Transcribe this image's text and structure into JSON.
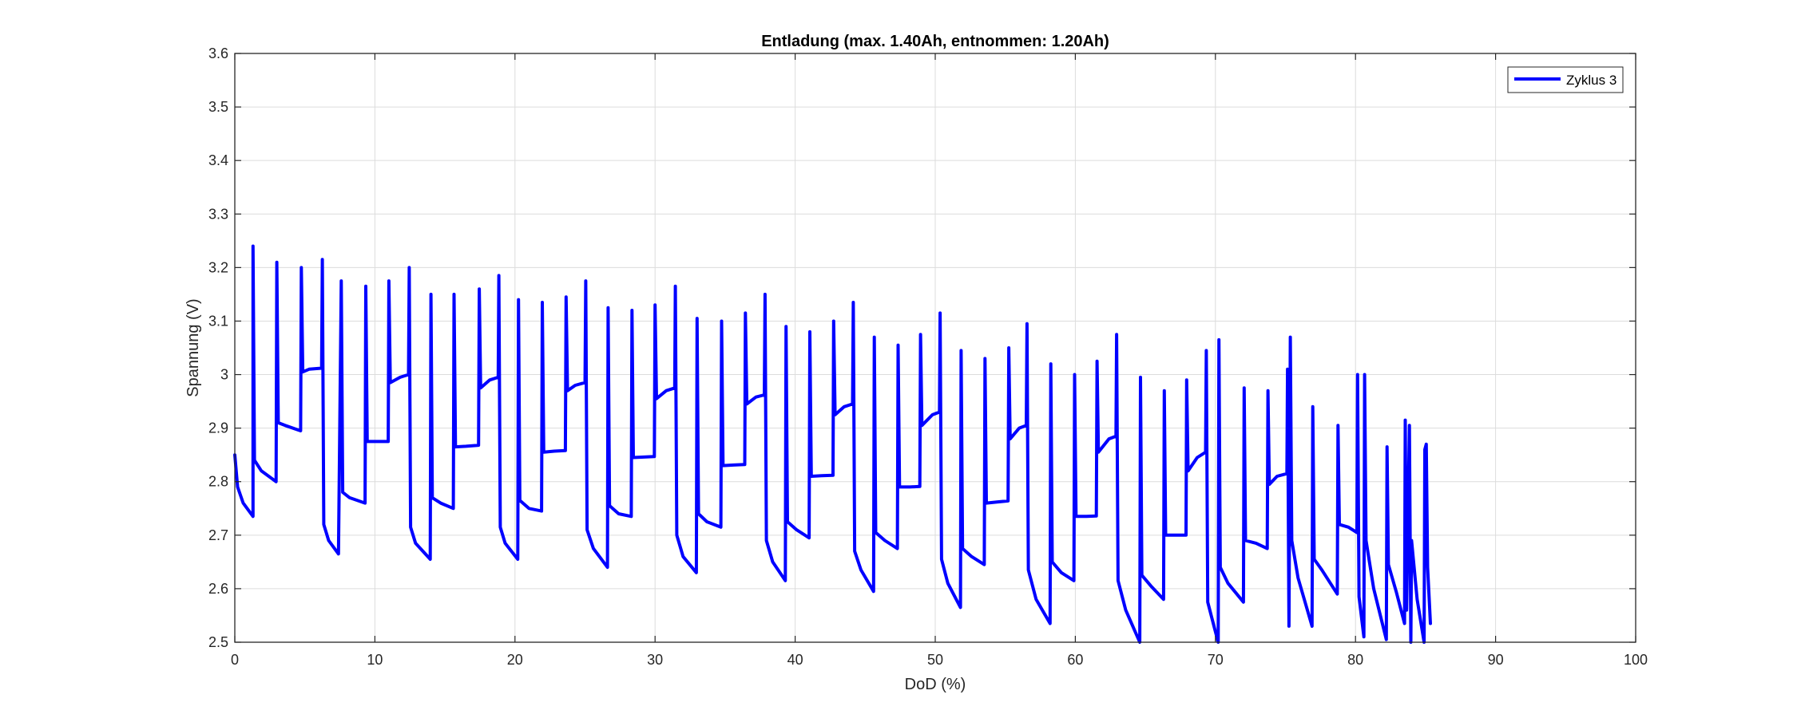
{
  "chart_data": {
    "type": "line",
    "title": "Entladung (max. 1.40Ah, entnommen: 1.20Ah)",
    "xlabel": "DoD (%)",
    "ylabel": "Spannung (V)",
    "xlim": [
      0,
      100
    ],
    "ylim": [
      2.5,
      3.6
    ],
    "xticks": [
      0,
      10,
      20,
      30,
      40,
      50,
      60,
      70,
      80,
      90,
      100
    ],
    "xtick_labels": [
      "0",
      "10",
      "20",
      "30",
      "40",
      "50",
      "60",
      "70",
      "80",
      "90",
      "100"
    ],
    "yticks": [
      2.5,
      2.6,
      2.7,
      2.8,
      2.9,
      3.0,
      3.1,
      3.2,
      3.3,
      3.4,
      3.5,
      3.6
    ],
    "ytick_labels": [
      "2.5",
      "2.6",
      "2.7",
      "2.8",
      "2.9",
      "3",
      "3.1",
      "3.2",
      "3.3",
      "3.4",
      "3.5",
      "3.6"
    ],
    "grid": true,
    "legend_position": "top-right",
    "series": [
      {
        "name": "Zyklus 3",
        "color": "#0000ff",
        "points": [
          [
            0.0,
            2.85
          ],
          [
            0.2,
            2.79
          ],
          [
            0.6,
            2.76
          ],
          [
            1.3,
            2.735
          ],
          [
            1.3,
            3.24
          ],
          [
            1.4,
            2.84
          ],
          [
            1.9,
            2.82
          ],
          [
            2.95,
            2.8
          ],
          [
            3.0,
            3.21
          ],
          [
            3.1,
            2.91
          ],
          [
            3.6,
            2.905
          ],
          [
            4.7,
            2.895
          ],
          [
            4.75,
            3.2
          ],
          [
            4.85,
            3.005
          ],
          [
            5.3,
            3.01
          ],
          [
            6.2,
            3.012
          ],
          [
            6.25,
            3.215
          ],
          [
            6.35,
            2.72
          ],
          [
            6.7,
            2.69
          ],
          [
            7.4,
            2.665
          ],
          [
            7.6,
            3.175
          ],
          [
            7.7,
            2.78
          ],
          [
            8.2,
            2.77
          ],
          [
            9.3,
            2.76
          ],
          [
            9.35,
            3.165
          ],
          [
            9.45,
            2.875
          ],
          [
            10.0,
            2.875
          ],
          [
            10.95,
            2.875
          ],
          [
            11.0,
            3.175
          ],
          [
            11.1,
            2.985
          ],
          [
            11.8,
            2.995
          ],
          [
            12.4,
            3.0
          ],
          [
            12.45,
            3.2
          ],
          [
            12.55,
            2.715
          ],
          [
            12.9,
            2.685
          ],
          [
            13.95,
            2.655
          ],
          [
            14.0,
            3.15
          ],
          [
            14.1,
            2.77
          ],
          [
            14.7,
            2.76
          ],
          [
            15.6,
            2.75
          ],
          [
            15.65,
            3.15
          ],
          [
            15.75,
            2.865
          ],
          [
            16.5,
            2.866
          ],
          [
            17.4,
            2.868
          ],
          [
            17.45,
            3.16
          ],
          [
            17.55,
            2.975
          ],
          [
            18.2,
            2.99
          ],
          [
            18.8,
            2.995
          ],
          [
            18.85,
            3.185
          ],
          [
            18.95,
            2.715
          ],
          [
            19.3,
            2.685
          ],
          [
            20.2,
            2.655
          ],
          [
            20.25,
            3.14
          ],
          [
            20.35,
            2.765
          ],
          [
            21.0,
            2.75
          ],
          [
            21.9,
            2.745
          ],
          [
            21.95,
            3.135
          ],
          [
            22.05,
            2.855
          ],
          [
            22.8,
            2.857
          ],
          [
            23.6,
            2.858
          ],
          [
            23.65,
            3.145
          ],
          [
            23.75,
            2.97
          ],
          [
            24.3,
            2.98
          ],
          [
            25.0,
            2.985
          ],
          [
            25.05,
            3.175
          ],
          [
            25.15,
            2.71
          ],
          [
            25.6,
            2.675
          ],
          [
            26.6,
            2.64
          ],
          [
            26.65,
            3.125
          ],
          [
            26.75,
            2.755
          ],
          [
            27.4,
            2.74
          ],
          [
            28.3,
            2.735
          ],
          [
            28.35,
            3.12
          ],
          [
            28.45,
            2.845
          ],
          [
            29.2,
            2.846
          ],
          [
            29.95,
            2.847
          ],
          [
            30.0,
            3.13
          ],
          [
            30.1,
            2.955
          ],
          [
            30.8,
            2.97
          ],
          [
            31.4,
            2.975
          ],
          [
            31.45,
            3.165
          ],
          [
            31.55,
            2.7
          ],
          [
            32.0,
            2.66
          ],
          [
            32.95,
            2.63
          ],
          [
            33.0,
            3.105
          ],
          [
            33.1,
            2.74
          ],
          [
            33.7,
            2.725
          ],
          [
            34.7,
            2.715
          ],
          [
            34.75,
            3.1
          ],
          [
            34.85,
            2.83
          ],
          [
            35.6,
            2.831
          ],
          [
            36.4,
            2.832
          ],
          [
            36.45,
            3.115
          ],
          [
            36.55,
            2.945
          ],
          [
            37.2,
            2.958
          ],
          [
            37.8,
            2.962
          ],
          [
            37.85,
            3.15
          ],
          [
            37.95,
            2.69
          ],
          [
            38.4,
            2.65
          ],
          [
            39.3,
            2.615
          ],
          [
            39.35,
            3.09
          ],
          [
            39.45,
            2.725
          ],
          [
            40.1,
            2.71
          ],
          [
            41.0,
            2.695
          ],
          [
            41.05,
            3.08
          ],
          [
            41.15,
            2.81
          ],
          [
            41.9,
            2.811
          ],
          [
            42.7,
            2.812
          ],
          [
            42.75,
            3.1
          ],
          [
            42.85,
            2.925
          ],
          [
            43.5,
            2.94
          ],
          [
            44.1,
            2.945
          ],
          [
            44.15,
            3.135
          ],
          [
            44.25,
            2.67
          ],
          [
            44.7,
            2.635
          ],
          [
            45.6,
            2.595
          ],
          [
            45.65,
            3.07
          ],
          [
            45.75,
            2.705
          ],
          [
            46.4,
            2.69
          ],
          [
            47.3,
            2.675
          ],
          [
            47.35,
            3.055
          ],
          [
            47.45,
            2.79
          ],
          [
            48.2,
            2.79
          ],
          [
            48.9,
            2.791
          ],
          [
            48.95,
            3.075
          ],
          [
            49.05,
            2.905
          ],
          [
            49.8,
            2.925
          ],
          [
            50.3,
            2.93
          ],
          [
            50.35,
            3.115
          ],
          [
            50.45,
            2.655
          ],
          [
            50.9,
            2.61
          ],
          [
            51.8,
            2.565
          ],
          [
            51.85,
            3.045
          ],
          [
            51.95,
            2.675
          ],
          [
            52.6,
            2.66
          ],
          [
            53.5,
            2.645
          ],
          [
            53.55,
            3.03
          ],
          [
            53.65,
            2.76
          ],
          [
            54.4,
            2.762
          ],
          [
            55.2,
            2.764
          ],
          [
            55.25,
            3.05
          ],
          [
            55.35,
            2.88
          ],
          [
            56.0,
            2.9
          ],
          [
            56.5,
            2.905
          ],
          [
            56.55,
            3.095
          ],
          [
            56.65,
            2.635
          ],
          [
            57.2,
            2.58
          ],
          [
            58.2,
            2.535
          ],
          [
            58.25,
            3.02
          ],
          [
            58.35,
            2.65
          ],
          [
            59.0,
            2.63
          ],
          [
            59.9,
            2.615
          ],
          [
            59.95,
            3.0
          ],
          [
            60.05,
            2.735
          ],
          [
            60.8,
            2.735
          ],
          [
            61.5,
            2.736
          ],
          [
            61.55,
            3.025
          ],
          [
            61.65,
            2.855
          ],
          [
            62.4,
            2.88
          ],
          [
            62.9,
            2.885
          ],
          [
            62.95,
            3.075
          ],
          [
            63.05,
            2.615
          ],
          [
            63.6,
            2.56
          ],
          [
            64.6,
            2.5
          ],
          [
            64.65,
            2.995
          ],
          [
            64.75,
            2.625
          ],
          [
            65.4,
            2.605
          ],
          [
            66.3,
            2.58
          ],
          [
            66.35,
            2.97
          ],
          [
            66.45,
            2.7
          ],
          [
            67.2,
            2.7
          ],
          [
            67.9,
            2.7
          ],
          [
            67.95,
            2.99
          ],
          [
            68.05,
            2.82
          ],
          [
            68.7,
            2.845
          ],
          [
            69.3,
            2.855
          ],
          [
            69.35,
            3.045
          ],
          [
            69.45,
            2.575
          ],
          [
            69.9,
            2.53
          ],
          [
            70.2,
            2.5
          ],
          [
            70.25,
            3.065
          ],
          [
            70.35,
            2.64
          ],
          [
            70.9,
            2.61
          ],
          [
            72.0,
            2.575
          ],
          [
            72.05,
            2.975
          ],
          [
            72.15,
            2.69
          ],
          [
            72.9,
            2.685
          ],
          [
            73.7,
            2.675
          ],
          [
            73.75,
            2.97
          ],
          [
            73.85,
            2.795
          ],
          [
            74.4,
            2.81
          ],
          [
            75.1,
            2.815
          ],
          [
            75.15,
            3.01
          ],
          [
            75.25,
            2.53
          ],
          [
            75.35,
            3.07
          ],
          [
            75.45,
            2.69
          ],
          [
            75.9,
            2.62
          ],
          [
            76.9,
            2.53
          ],
          [
            76.95,
            2.94
          ],
          [
            77.05,
            2.655
          ],
          [
            77.6,
            2.635
          ],
          [
            78.7,
            2.59
          ],
          [
            78.75,
            2.905
          ],
          [
            78.85,
            2.72
          ],
          [
            79.5,
            2.715
          ],
          [
            80.1,
            2.705
          ],
          [
            80.15,
            3.0
          ],
          [
            80.25,
            2.585
          ],
          [
            80.6,
            2.51
          ],
          [
            80.65,
            3.0
          ],
          [
            80.75,
            2.69
          ],
          [
            81.3,
            2.6
          ],
          [
            82.2,
            2.505
          ],
          [
            82.25,
            2.865
          ],
          [
            82.35,
            2.645
          ],
          [
            82.9,
            2.595
          ],
          [
            83.5,
            2.535
          ],
          [
            83.55,
            2.915
          ],
          [
            83.65,
            2.56
          ],
          [
            83.85,
            2.905
          ],
          [
            83.95,
            2.5
          ],
          [
            84.0,
            2.69
          ],
          [
            84.4,
            2.58
          ],
          [
            84.9,
            2.5
          ],
          [
            84.95,
            2.86
          ],
          [
            85.05,
            2.87
          ],
          [
            85.15,
            2.64
          ],
          [
            85.35,
            2.535
          ]
        ]
      }
    ]
  }
}
